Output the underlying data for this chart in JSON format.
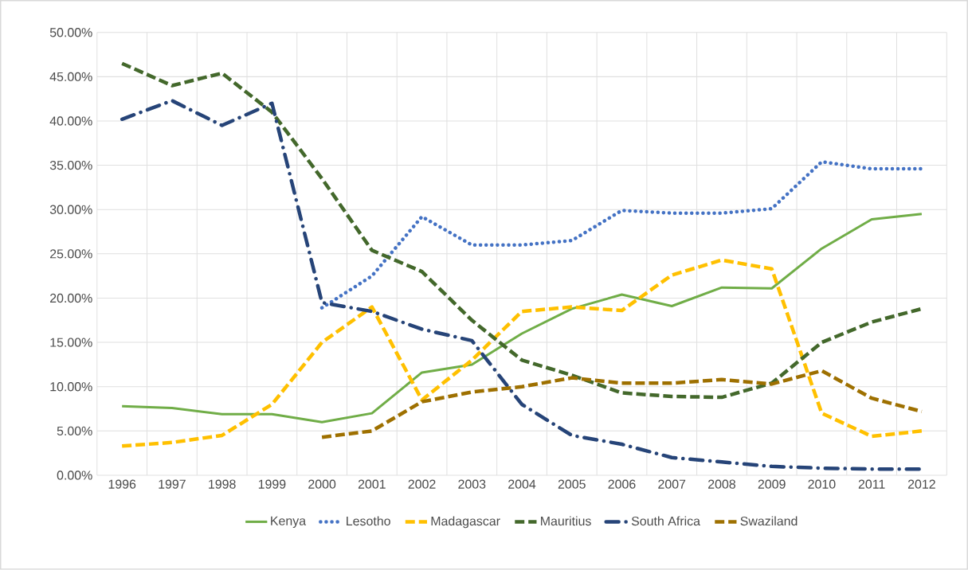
{
  "chart_data": {
    "type": "line",
    "categories": [
      "1996",
      "1997",
      "1998",
      "1999",
      "2000",
      "2001",
      "2002",
      "2003",
      "2004",
      "2005",
      "2006",
      "2007",
      "2008",
      "2009",
      "2010",
      "2011",
      "2012"
    ],
    "series": [
      {
        "name": "Kenya",
        "color": "#70ad47",
        "line_style": "solid",
        "values": [
          7.8,
          7.6,
          6.9,
          6.9,
          6.0,
          7.0,
          11.6,
          12.5,
          16,
          18.8,
          20.4,
          19.1,
          21.2,
          21.1,
          25.6,
          28.9,
          29.5
        ]
      },
      {
        "name": "Lesotho",
        "color": "#4472c4",
        "line_style": "dotted",
        "values": [
          null,
          null,
          null,
          null,
          18.9,
          22.5,
          29.2,
          26,
          26,
          26.5,
          29.9,
          29.6,
          29.6,
          30.1,
          35.4,
          34.6,
          34.6
        ]
      },
      {
        "name": "Madagascar",
        "color": "#ffc000",
        "line_style": "dashed",
        "values": [
          3.3,
          3.7,
          4.5,
          8,
          15,
          19,
          8.5,
          13,
          18.5,
          19,
          18.6,
          22.6,
          24.3,
          23.3,
          7,
          4.4,
          5
        ]
      },
      {
        "name": "Mauritius",
        "color": "#43682b",
        "line_style": "dashed",
        "values": [
          46.5,
          44,
          45.4,
          41,
          33.5,
          25.4,
          23,
          17.5,
          13,
          11.3,
          9.3,
          8.9,
          8.8,
          10.4,
          15,
          17.3,
          18.8
        ]
      },
      {
        "name": "South Africa",
        "color": "#264478",
        "line_style": "dashdot",
        "values": [
          40.2,
          42.3,
          39.5,
          42,
          19.5,
          18.5,
          16.5,
          15.2,
          8,
          4.5,
          3.5,
          2,
          1.5,
          1,
          0.8,
          0.7,
          0.7
        ]
      },
      {
        "name": "Swaziland",
        "color": "#9e7000",
        "line_style": "dashed",
        "values": [
          null,
          null,
          null,
          null,
          4.3,
          5,
          8.3,
          9.4,
          10,
          11,
          10.4,
          10.4,
          10.8,
          10.3,
          11.8,
          8.7,
          7.2
        ]
      }
    ],
    "ylim": [
      0,
      50
    ],
    "yticks": [
      {
        "value": 0,
        "label": "0.00%"
      },
      {
        "value": 5,
        "label": "5.00%"
      },
      {
        "value": 10,
        "label": "10.00%"
      },
      {
        "value": 15,
        "label": "15.00%"
      },
      {
        "value": 20,
        "label": "20.00%"
      },
      {
        "value": 25,
        "label": "25.00%"
      },
      {
        "value": 30,
        "label": "30.00%"
      },
      {
        "value": 35,
        "label": "35.00%"
      },
      {
        "value": 40,
        "label": "40.00%"
      },
      {
        "value": 45,
        "label": "45.00%"
      },
      {
        "value": 50,
        "label": "50.00%"
      }
    ],
    "grid": true,
    "legend": "bottom",
    "marker": "none"
  }
}
